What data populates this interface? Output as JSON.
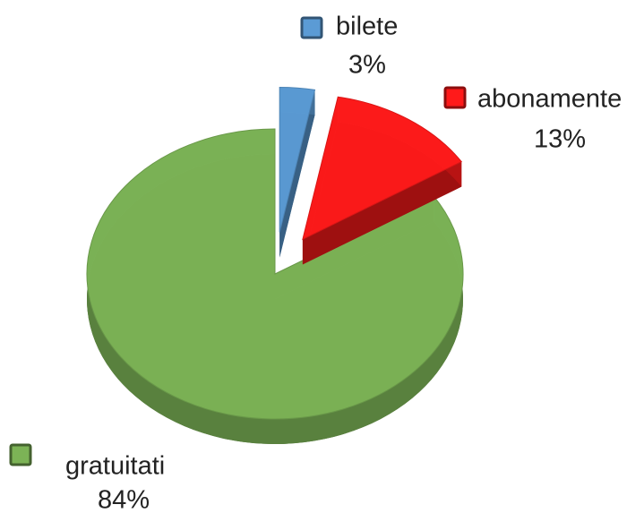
{
  "chart_data": {
    "type": "pie",
    "categories": [
      "bilete",
      "abonamente",
      "gratuitati"
    ],
    "values": [
      3,
      13,
      84
    ],
    "value_labels": [
      "3%",
      "13%",
      "84%"
    ],
    "colors": [
      "#5b9bd5",
      "#ff1a1a",
      "#7cb356"
    ]
  }
}
